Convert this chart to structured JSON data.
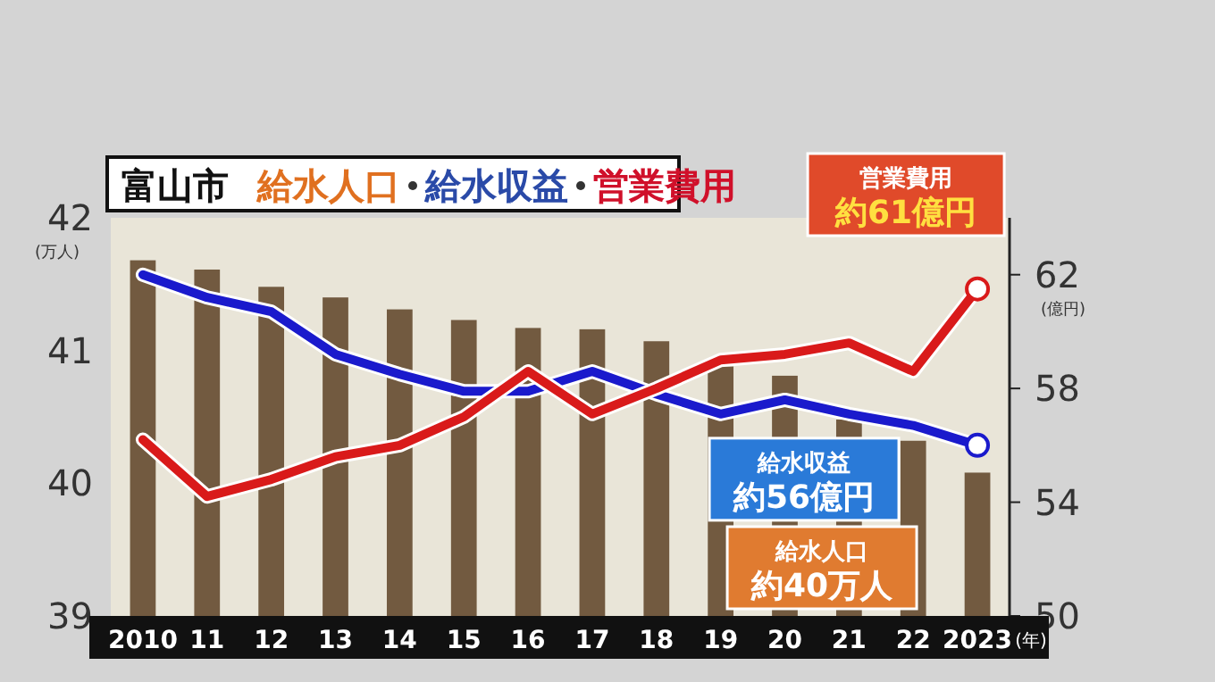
{
  "chart_data": {
    "type": "bar",
    "title": "富山市",
    "xlabel": "(年)",
    "ylabel": "(万人)",
    "y2label": "(億円)",
    "categories": [
      "2010",
      "11",
      "12",
      "13",
      "14",
      "15",
      "16",
      "17",
      "18",
      "19",
      "20",
      "21",
      "22",
      "2023"
    ],
    "series": [
      {
        "name": "給水人口",
        "color": "#725a40",
        "values": [
          41.68,
          41.61,
          41.48,
          41.4,
          41.31,
          41.23,
          41.17,
          41.16,
          41.07,
          40.88,
          40.81,
          40.48,
          40.32,
          40.08
        ]
      },
      {
        "name": "給水収益",
        "type": "line",
        "axis": "y2",
        "color": "#1a1acc",
        "values": [
          62.0,
          61.2,
          60.7,
          59.2,
          58.5,
          57.9,
          57.9,
          58.6,
          57.8,
          57.1,
          57.6,
          57.1,
          56.7,
          56.0
        ]
      },
      {
        "name": "営業費用",
        "type": "line",
        "axis": "y2",
        "color": "#d91a1a",
        "values": [
          56.2,
          54.2,
          54.8,
          55.6,
          56.0,
          57.0,
          58.6,
          57.1,
          58.0,
          59.0,
          59.2,
          59.6,
          58.6,
          61.5
        ]
      }
    ],
    "ylim": [
      39,
      42
    ],
    "yticks": [
      39,
      40,
      41,
      42
    ],
    "y2lim": [
      50,
      64
    ],
    "y2ticks": [
      50,
      54,
      58,
      62
    ],
    "legend": false,
    "annotations": [
      "給水人口",
      "約40万人",
      "給水収益",
      "約56億円",
      "営業費用",
      "約61億円"
    ]
  }
}
